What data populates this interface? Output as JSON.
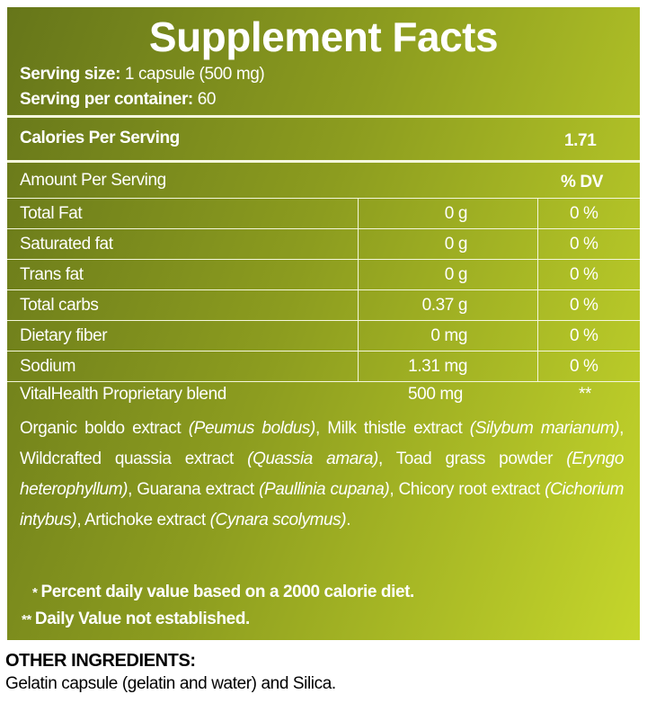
{
  "title": "Supplement Facts",
  "serving": [
    {
      "label": "Serving size:",
      "value": "1 capsule (500 mg)"
    },
    {
      "label": "Serving per container:",
      "value": "60"
    }
  ],
  "calories": {
    "label": "Calories Per Serving",
    "value": "1.71"
  },
  "table": {
    "header": [
      "Amount Per Serving",
      "% DV"
    ],
    "rows": [
      [
        "Total Fat",
        "0 g",
        "0 %"
      ],
      [
        "Saturated fat",
        "0 g",
        "0 %"
      ],
      [
        "Trans fat",
        "0 g",
        "0 %"
      ],
      [
        "Total carbs",
        "0.37 g",
        "0 %"
      ],
      [
        "Dietary fiber",
        "0 mg",
        "0 %"
      ],
      [
        "Sodium",
        "1.31 mg",
        "0 %"
      ]
    ]
  },
  "blend": {
    "name": "VitalHealth Proprietary blend",
    "amount": "500 mg",
    "dv": "**",
    "ingredients": [
      {
        "text": "Organic boldo extract "
      },
      {
        "text": "(Peumus boldus)",
        "italic": true
      },
      {
        "text": ", Milk thistle extract "
      },
      {
        "text": "(Silybum marianum)",
        "italic": true
      },
      {
        "text": ", Wildcrafted quassia extract "
      },
      {
        "text": "(Quassia amara)",
        "italic": true
      },
      {
        "text": ", Toad grass powder "
      },
      {
        "text": "(Eryngo heterophyllum)",
        "italic": true
      },
      {
        "text": ", Guarana extract "
      },
      {
        "text": "(Paullinia cupana)",
        "italic": true
      },
      {
        "text": ", Chicory root extract "
      },
      {
        "text": "(Cichorium intybus)",
        "italic": true
      },
      {
        "text": ", Artichoke extract "
      },
      {
        "text": "(Cynara scolymus)",
        "italic": true
      },
      {
        "text": "."
      }
    ]
  },
  "footnotes": [
    {
      "mark": "*",
      "text": "Percent daily value based on a 2000 calorie diet."
    },
    {
      "mark": "**",
      "text": "Daily Value not established."
    }
  ],
  "other": {
    "title": "OTHER INGREDIENTS:",
    "text": "Gelatin capsule (gelatin and water) and Silica."
  }
}
